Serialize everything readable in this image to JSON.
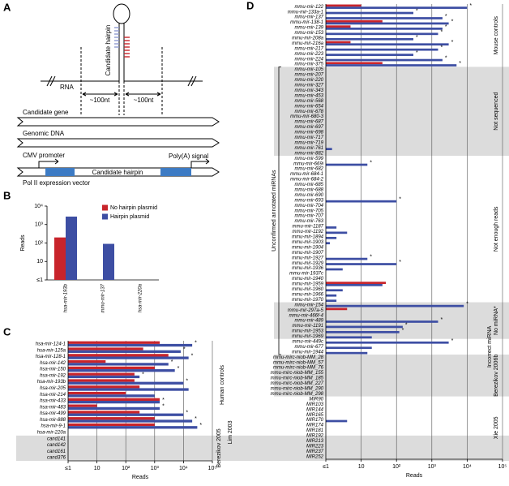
{
  "diagram": {
    "panel_label": "A",
    "hairpin_label": "Candidate hairpin",
    "rna_label": "RNA",
    "left_length": "~100nt",
    "right_length": "~100nt",
    "gene_label": "Candidate gene",
    "genomic_label": "Genomic DNA",
    "promoter_label": "CMV promoter",
    "insert_label": "Candidate hairpin",
    "polya_label": "Poly(A) signal",
    "vector_label": "Pol II expression vector"
  },
  "chart_data": [
    {
      "type": "bar",
      "panel_label": "B",
      "y_label": "Reads",
      "log_scale": true,
      "legend": "top-right",
      "categories": [
        "hsa-mir-193b",
        "mmu-mir-137",
        "hsa-mir-220a"
      ],
      "series": [
        {
          "name": "No hairpin plasmid",
          "color": "#c8242b",
          "values": [
            200,
            1,
            1
          ]
        },
        {
          "name": "Hairpin plasmid",
          "color": "#3d4ea3",
          "values": [
            2700,
            90,
            1
          ]
        }
      ],
      "ylim": [
        1,
        10000
      ],
      "yticks": [
        {
          "value": 1,
          "label": "≤1"
        },
        10,
        {
          "value": 100,
          "label": "10²"
        },
        {
          "value": 1000,
          "label": "10³"
        },
        {
          "value": 10000,
          "label": "10⁴"
        }
      ]
    },
    {
      "type": "barh",
      "panel_label": "C",
      "x_label": "Reads",
      "log_scale": true,
      "grid": true,
      "groups": [
        {
          "label": "Human controls",
          "shaded": false,
          "categories": [
            "hsa-mir-124-1",
            "hsa-mir-125a",
            "hsa-mir-128-1",
            "hsa-mir-142",
            "hsa-mir-150",
            "hsa-mir-192",
            "hsa-mir-193b",
            "hsa-mir-205",
            "hsa-mir-214",
            "hsa-mir-433",
            "hsa-mir-483",
            "hsa-mir-499",
            "hsa-mir-888",
            "hsa-mir-9-1"
          ]
        },
        {
          "label": "Lim 2003",
          "shaded": false,
          "categories": [
            "hsa-mir-220a"
          ]
        },
        {
          "label": "Berezikov 2005",
          "shaded": true,
          "categories": [
            "cand141",
            "cand142",
            "cand161",
            "cand376"
          ]
        }
      ],
      "series": [
        {
          "color": "#c8242b",
          "values": [
            1500,
            400,
            3000,
            20,
            1000,
            200,
            200,
            300,
            100,
            1500,
            10,
            300,
            1000,
            1000,
            1,
            1,
            1,
            1,
            1
          ]
        },
        {
          "color": "#3d4ea3",
          "values": [
            20000,
            8000,
            15000,
            3000,
            5000,
            300,
            10000,
            15000,
            1000,
            1500,
            1500,
            10000,
            20000,
            30000,
            1,
            1,
            1,
            1,
            1
          ]
        }
      ],
      "annotations": [
        "*",
        "*",
        "*",
        "*",
        "*",
        "*",
        "*",
        null,
        null,
        "*",
        "*",
        "*",
        "*",
        "*",
        null,
        null,
        null,
        null,
        null
      ],
      "xlim": [
        1,
        100000
      ],
      "xticks": [
        {
          "value": 1,
          "label": "≤1"
        },
        10,
        {
          "value": 100,
          "label": "10²"
        },
        {
          "value": 1000,
          "label": "10³"
        },
        {
          "value": 10000,
          "label": "10⁴"
        },
        {
          "value": 100000,
          "label": "10⁵"
        }
      ]
    },
    {
      "type": "barh",
      "panel_label": "D",
      "x_label": "Reads",
      "log_scale": true,
      "grid": true,
      "bracket_label": "Unconfirmed annotated miRNAs",
      "groups": [
        {
          "label": "Mouse controls",
          "shaded": false,
          "bracketed": false,
          "categories": [
            "mmu-mir-122",
            "mmu-mir-133a-1",
            "mmu-mir-137",
            "mmu-mir-138-1",
            "mmu-mir-139",
            "mmu-mir-153",
            "mmu-mir-208a",
            "mmu-mir-216a",
            "mmu-mir-217",
            "mmu-mir-223",
            "mmu-mir-224",
            "mmu-mir-375"
          ]
        },
        {
          "label": "Not sequenced",
          "shaded": true,
          "bracketed": true,
          "categories": [
            "mmu-mir-105",
            "mmu-mir-207",
            "mmu-mir-220",
            "mmu-mir-327",
            "mmu-mir-343",
            "mmu-mir-453",
            "mmu-mir-568",
            "mmu-mir-654",
            "mmu-mir-678",
            "mmu-mir-680-3",
            "mmu-mir-687",
            "mmu-mir-697",
            "mmu-mir-698",
            "mmu-mir-717",
            "mmu-mir-719",
            "mmu-mir-761",
            "mmu-mir-882"
          ]
        },
        {
          "label": "Not enough reads",
          "shaded": false,
          "bracketed": true,
          "categories": [
            "mmu-mir-599",
            "mmu-mir-669i",
            "mmu-mir-682",
            "mmu-mir-684-1",
            "mmu-mir-684-2",
            "mmu-mir-685",
            "mmu-mir-688",
            "mmu-mir-690",
            "mmu-mir-693",
            "mmu-mir-704",
            "mmu-mir-705",
            "mmu-mir-707",
            "mmu-mir-763",
            "mmu-mir-1187",
            "mmu-mir-1192",
            "mmu-mir-1894",
            "mmu-mir-1903",
            "mmu-mir-1904",
            "mmu-mir-1907",
            "mmu-mir-1927",
            "mmu-mir-1929",
            "mmu-mir-1936",
            "mmu-mir-1937c",
            "mmu-mir-1940",
            "mmu-mir-1959",
            "mmu-mir-1960",
            "mmu-mir-1966",
            "mmu-mir-1970"
          ]
        },
        {
          "label": "No miRNA*",
          "shaded": true,
          "bracketed": true,
          "categories": [
            "mmu-mir-154",
            "mmu-mir-297a-5",
            "mmu-mir-466f-4",
            "mmu-mir-489",
            "mmu-mir-1191",
            "mmu-mir-1953",
            "mmu-mir-1969"
          ]
        },
        {
          "label": "Incorrect miRNA",
          "shaded": false,
          "bracketed": true,
          "categories": [
            "mmu-mir-449c",
            "mmu-mir-677",
            "mmu-mir-1944"
          ]
        },
        {
          "label": "Berezikov 2006b",
          "shaded": true,
          "bracketed": false,
          "categories": [
            "mmu-mirc-niob-MM_28",
            "mmu-mirc-niob-MM_57",
            "mmu-mirc-niob-MM_76",
            "mmu-mirc-niob-MM_155",
            "mmu-mirc-niob-MM_185",
            "mmu-mirc-niob-MM_227",
            "mmu-mirc-niob-MM_290",
            "mmu-mirc-niob-MM_298"
          ]
        },
        {
          "label": "Xie 2005",
          "shaded": false,
          "bracketed": false,
          "categories": [
            "MIR90",
            "MIR103",
            "MIR144",
            "MIR165",
            "MIR170",
            "MIR174",
            "MIR181",
            "MIR192",
            "MIR213",
            "MIR223",
            "MIR237",
            "MIR252"
          ]
        }
      ],
      "series": [
        {
          "color": "#c8242b",
          "values": [
            10,
            1,
            1,
            40,
            5,
            1,
            1,
            5,
            1,
            1,
            1,
            40,
            1,
            1,
            1,
            1,
            1,
            1,
            1,
            1,
            1,
            1,
            1,
            1,
            1,
            1,
            1,
            1,
            1,
            1,
            1,
            1,
            1,
            1,
            1,
            1,
            1,
            1,
            1,
            1,
            1,
            1,
            1,
            1,
            1,
            1,
            1,
            1,
            1,
            1,
            1,
            1,
            1,
            50,
            1,
            1,
            1,
            1,
            4,
            1,
            1,
            1,
            1,
            1,
            1,
            1,
            1,
            1,
            1,
            1,
            1,
            1,
            1,
            1,
            1,
            1,
            1,
            1,
            1,
            1,
            1,
            1,
            1,
            1,
            1,
            1,
            1
          ]
        },
        {
          "color": "#3d4ea3",
          "values": [
            10000,
            300,
            2000,
            3000,
            2000,
            1500,
            300,
            3000,
            1500,
            300,
            2000,
            5000,
            1,
            1,
            1,
            1,
            1,
            1,
            1,
            1,
            1,
            1,
            1,
            1,
            1,
            1,
            1,
            1.5,
            1,
            1,
            15,
            1,
            1,
            1,
            1,
            1,
            1,
            100,
            1,
            1,
            1,
            1,
            2,
            4,
            2,
            1.3,
            1,
            1,
            15,
            100,
            3,
            1,
            1,
            40,
            3,
            2,
            2,
            8000,
            1,
            1,
            1500,
            150,
            120,
            20,
            3000,
            20,
            15,
            1,
            1,
            1,
            1,
            1,
            1,
            1,
            1,
            1,
            1,
            1,
            1,
            4,
            1,
            1,
            1,
            1,
            1,
            1,
            1
          ]
        }
      ],
      "annotations": [
        "*",
        "*",
        "*",
        "*",
        "*",
        "*",
        "*",
        "*",
        "*",
        "*",
        "*",
        "*",
        null,
        null,
        null,
        null,
        null,
        null,
        null,
        null,
        null,
        null,
        null,
        null,
        null,
        null,
        null,
        null,
        null,
        null,
        "*",
        null,
        null,
        null,
        null,
        null,
        null,
        "*",
        null,
        null,
        null,
        null,
        null,
        null,
        null,
        null,
        null,
        null,
        "*",
        "*",
        null,
        null,
        null,
        null,
        null,
        null,
        null,
        "*",
        null,
        null,
        "*",
        "*",
        "*",
        null,
        "*",
        null,
        null,
        null,
        null,
        null,
        null,
        null,
        null,
        null,
        null,
        null,
        null,
        null,
        null,
        null,
        null,
        null,
        null,
        null,
        null,
        null,
        null
      ],
      "xlim": [
        1,
        100000
      ],
      "xticks": [
        {
          "value": 1,
          "label": "≤1"
        },
        10,
        {
          "value": 100,
          "label": "10²"
        },
        {
          "value": 1000,
          "label": "10³"
        },
        {
          "value": 10000,
          "label": "10⁴"
        },
        {
          "value": 100000,
          "label": "10⁵"
        }
      ]
    }
  ]
}
